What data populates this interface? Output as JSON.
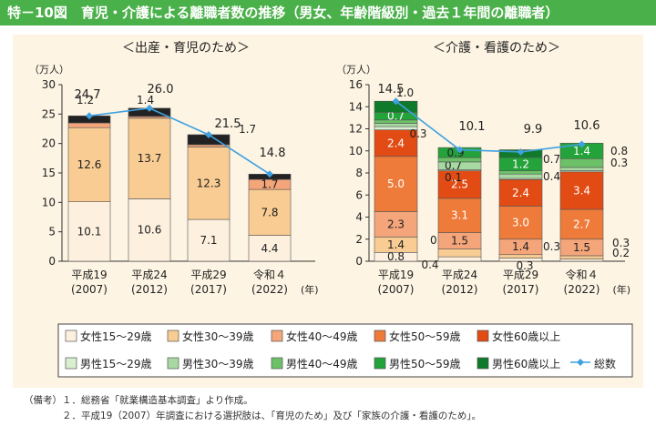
{
  "title": "特－10図　育児・介護による離職者数の推移（男女、年齢階級別・過去１年間の離職者）",
  "colors": {
    "title_bar": "#4ab04a",
    "panel": "#fdf4e3",
    "total_line": "#3fa1e0",
    "female_15_29": "#fdf0df",
    "female_30_39": "#f8cc92",
    "female_40_49": "#f4a57a",
    "female_50_59": "#ee7b3a",
    "female_60plus": "#e24c14",
    "male_15_29": "#d8efd0",
    "male_30_39": "#a9d9a2",
    "male_40_49": "#6cc067",
    "male_50_59": "#24a33a",
    "male_60plus": "#0f7a2a",
    "tiny_segment": "#222222"
  },
  "chart_data": [
    {
      "type": "bar",
      "title": "＜出産・育児のため＞",
      "ylabel": "（万人）",
      "ylim": [
        0,
        30
      ],
      "yticks": [
        "0",
        "5",
        "10",
        "15",
        "20",
        "25",
        "30"
      ],
      "categories": [
        "平成19\n(2007)",
        "平成24\n(2012)",
        "平成29\n(2017)",
        "令和４\n(2022)"
      ],
      "series": [
        {
          "name": "女性15～29歳",
          "values": [
            10.1,
            10.6,
            7.1,
            4.4
          ],
          "labels": [
            "10.1",
            "10.6",
            "7.1",
            "4.4"
          ]
        },
        {
          "name": "女性30～39歳",
          "values": [
            12.6,
            13.7,
            12.3,
            7.8
          ],
          "labels": [
            "12.6",
            "13.7",
            "12.3",
            "7.8"
          ]
        },
        {
          "name": "女性40～49歳",
          "values": [
            0.8,
            0.3,
            0.4,
            1.7
          ],
          "labels": [
            "",
            "",
            "",
            "1.7"
          ]
        },
        {
          "name": "男性",
          "values": [
            1.2,
            1.4,
            1.7,
            0.9
          ],
          "labels": [
            "1.2",
            "1.4",
            "1.7",
            ""
          ]
        }
      ],
      "total": {
        "name": "総数",
        "values": [
          24.7,
          26.0,
          21.5,
          14.8
        ],
        "labels": [
          "24.7",
          "26.0",
          "21.5",
          "14.8"
        ]
      },
      "x_unit": "(年)"
    },
    {
      "type": "bar",
      "title": "＜介護・看護のため＞",
      "ylabel": "（万人）",
      "ylim": [
        0,
        16
      ],
      "yticks": [
        "0",
        "2",
        "4",
        "6",
        "8",
        "10",
        "12",
        "14",
        "16"
      ],
      "categories": [
        "平成19\n(2007)",
        "平成24\n(2012)",
        "平成29\n(2017)",
        "令和４\n(2022)"
      ],
      "series": [
        {
          "name": "女性15～29歳",
          "values": [
            0.8,
            0.4,
            0.3,
            0.2
          ],
          "labels": [
            "0.8",
            "0.4",
            "0.3",
            "0.2"
          ]
        },
        {
          "name": "女性30～39歳",
          "values": [
            1.4,
            0.7,
            0.3,
            0.3
          ],
          "labels": [
            "1.4",
            "0.7",
            "0.3",
            "0.3"
          ]
        },
        {
          "name": "女性40～49歳",
          "values": [
            2.3,
            1.5,
            1.4,
            1.5
          ],
          "labels": [
            "2.3",
            "1.5",
            "1.4",
            "1.5"
          ]
        },
        {
          "name": "女性50～59歳",
          "values": [
            5.0,
            3.1,
            3.0,
            2.7
          ],
          "labels": [
            "5.0",
            "3.1",
            "3.0",
            "2.7"
          ]
        },
        {
          "name": "女性60歳以上",
          "values": [
            2.4,
            2.5,
            2.4,
            3.4
          ],
          "labels": [
            "2.4",
            "2.5",
            "2.4",
            "3.4"
          ]
        },
        {
          "name": "男性15～29歳",
          "values": [
            0.3,
            0.1,
            0.1,
            0.1
          ],
          "labels": [
            "0.3",
            "0.1",
            "",
            ""
          ]
        },
        {
          "name": "男性30～39歳",
          "values": [
            0.3,
            0.7,
            0.4,
            0.3
          ],
          "labels": [
            "",
            "0.7",
            "0.4",
            "0.3"
          ]
        },
        {
          "name": "男性40～49歳",
          "values": [
            0.3,
            0.4,
            0.3,
            0.8
          ],
          "labels": [
            "",
            "",
            "",
            "0.8"
          ]
        },
        {
          "name": "男性50～59歳",
          "values": [
            0.7,
            0.9,
            1.2,
            1.4
          ],
          "labels": [
            "0.7",
            "0.9",
            "1.2",
            "1.4"
          ]
        },
        {
          "name": "男性60歳以上",
          "values": [
            1.0,
            0.0,
            0.7,
            0.0
          ],
          "labels": [
            "1.0",
            "",
            "0.7",
            ""
          ]
        }
      ],
      "total": {
        "name": "総数",
        "values": [
          14.5,
          10.1,
          9.9,
          10.6
        ],
        "labels": [
          "14.5",
          "10.1",
          "9.9",
          "10.6"
        ]
      },
      "x_unit": "(年)"
    }
  ],
  "legend": {
    "row1": [
      "女性15～29歳",
      "女性30～39歳",
      "女性40～49歳",
      "女性50～59歳",
      "女性60歳以上"
    ],
    "row2": [
      "男性15～29歳",
      "男性30～39歳",
      "男性40～49歳",
      "男性50～59歳",
      "男性60歳以上"
    ],
    "total": "総数"
  },
  "notes": [
    "（備考）１．総務省「就業構造基本調査」より作成。",
    "　　　　２．平成19（2007）年調査における選択肢は、「育児のため」及び「家族の介護・看護のため」。"
  ]
}
